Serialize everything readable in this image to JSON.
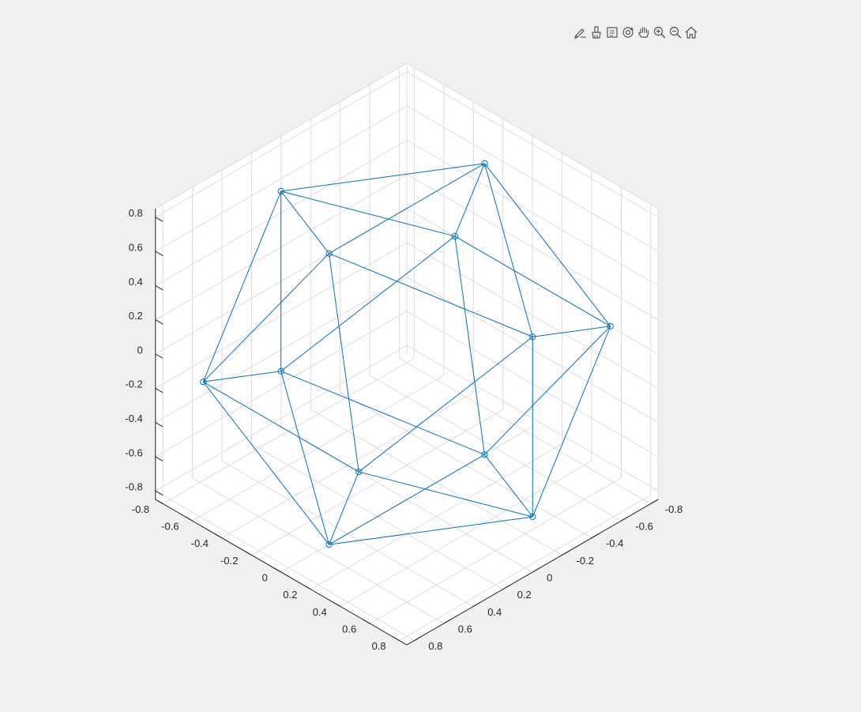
{
  "toolbar": {
    "icons": [
      "edit-icon",
      "brush-icon",
      "data-tips-icon",
      "rotate-3d-icon",
      "pan-hand-icon",
      "zoom-in-icon",
      "zoom-out-icon",
      "home-icon"
    ]
  },
  "colors": {
    "series": "#0072bd",
    "grid": "#dcdcdc",
    "axis": "#262626",
    "background": "#f0f0f0"
  },
  "chart_data": {
    "type": "line",
    "title": "",
    "xlabel": "",
    "ylabel": "",
    "zlabel": "",
    "grid": true,
    "box": true,
    "marker": "circle",
    "view": "3d-isometric",
    "xlim": [
      -0.85,
      0.85
    ],
    "ylim": [
      -0.85,
      0.85
    ],
    "zlim": [
      -0.85,
      0.85
    ],
    "x_ticks": [
      "-0.8",
      "-0.6",
      "-0.4",
      "-0.2",
      "0",
      "0.2",
      "0.4",
      "0.6",
      "0.8"
    ],
    "y_ticks": [
      "-0.8",
      "-0.6",
      "-0.4",
      "-0.2",
      "0",
      "0.2",
      "0.4",
      "0.6",
      "0.8"
    ],
    "z_ticks": [
      "-0.8",
      "-0.6",
      "-0.4",
      "-0.2",
      "0",
      "0.2",
      "0.4",
      "0.6",
      "0.8"
    ],
    "x_tick_values": [
      -0.8,
      -0.6,
      -0.4,
      -0.2,
      0,
      0.2,
      0.4,
      0.6,
      0.8
    ],
    "y_tick_values": [
      -0.8,
      -0.6,
      -0.4,
      -0.2,
      0,
      0.2,
      0.4,
      0.6,
      0.8
    ],
    "z_tick_values": [
      -0.8,
      -0.6,
      -0.4,
      -0.2,
      0,
      0.2,
      0.4,
      0.6,
      0.8
    ],
    "vertices": [
      [
        0,
        0.526,
        0.851
      ],
      [
        0,
        -0.526,
        0.851
      ],
      [
        0,
        0.526,
        -0.851
      ],
      [
        0,
        -0.526,
        -0.851
      ],
      [
        0.526,
        0.851,
        0
      ],
      [
        -0.526,
        0.851,
        0
      ],
      [
        0.526,
        -0.851,
        0
      ],
      [
        -0.526,
        -0.851,
        0
      ],
      [
        0.851,
        0,
        0.526
      ],
      [
        -0.851,
        0,
        0.526
      ],
      [
        0.851,
        0,
        -0.526
      ],
      [
        -0.851,
        0,
        -0.526
      ]
    ],
    "edges": [
      [
        0,
        1
      ],
      [
        0,
        4
      ],
      [
        0,
        5
      ],
      [
        0,
        8
      ],
      [
        0,
        9
      ],
      [
        1,
        6
      ],
      [
        1,
        7
      ],
      [
        1,
        8
      ],
      [
        1,
        9
      ],
      [
        2,
        3
      ],
      [
        2,
        4
      ],
      [
        2,
        5
      ],
      [
        2,
        10
      ],
      [
        2,
        11
      ],
      [
        3,
        6
      ],
      [
        3,
        7
      ],
      [
        3,
        10
      ],
      [
        3,
        11
      ],
      [
        4,
        5
      ],
      [
        4,
        8
      ],
      [
        4,
        10
      ],
      [
        5,
        9
      ],
      [
        5,
        11
      ],
      [
        6,
        7
      ],
      [
        6,
        8
      ],
      [
        6,
        10
      ],
      [
        7,
        9
      ],
      [
        7,
        11
      ],
      [
        8,
        10
      ],
      [
        9,
        11
      ]
    ]
  }
}
